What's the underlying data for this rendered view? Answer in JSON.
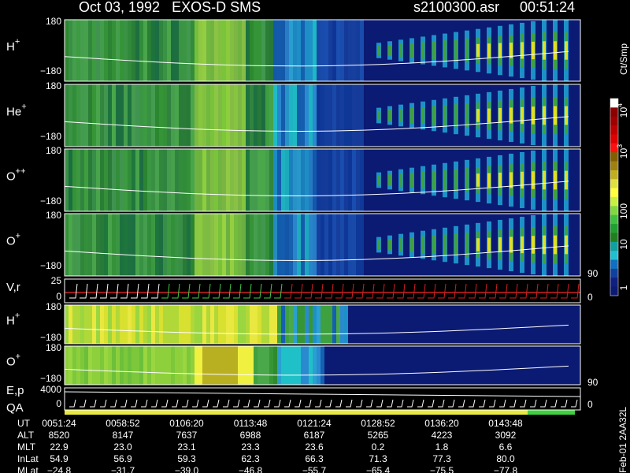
{
  "header": {
    "title": "Oct 03, 1992   EXOS-D SMS",
    "file": "s2100300.asr",
    "time": "00:51:24"
  },
  "panels": [
    {
      "label": "H",
      "charge": "+",
      "ticks": [
        "180",
        "−180"
      ]
    },
    {
      "label": "He",
      "charge": "+",
      "ticks": [
        "180",
        "−180"
      ]
    },
    {
      "label": "O",
      "charge": "++",
      "ticks": [
        "180",
        "−180"
      ]
    },
    {
      "label": "O",
      "charge": "+",
      "ticks": [
        "180",
        "−180"
      ]
    },
    {
      "label": "V,r",
      "ticks": [
        "25",
        "0"
      ],
      "right_ticks": [
        "90",
        "0"
      ]
    },
    {
      "label": "H",
      "charge": "+",
      "ticks": [
        "180",
        "−180"
      ]
    },
    {
      "label": "O",
      "charge": "+",
      "ticks": [
        "180",
        "−180"
      ]
    },
    {
      "label": "E,p",
      "label2": "QA",
      "ticks": [
        "4000",
        "0"
      ],
      "right_ticks": [
        "90",
        "0"
      ]
    }
  ],
  "colorbar": {
    "units": "Ct/Smp",
    "labels": [
      {
        "base": "10",
        "exp": "4"
      },
      {
        "base": "10",
        "exp": "3"
      },
      {
        "base": "100"
      },
      {
        "base": "10"
      },
      {
        "base": "1"
      }
    ]
  },
  "table": {
    "rows": [
      {
        "label": "UT",
        "values": [
          "0051:24",
          "0058:52",
          "0106:20",
          "0113:48",
          "0121:24",
          "0128:52",
          "0136:20",
          "0143:48"
        ]
      },
      {
        "label": "ALT",
        "values": [
          "8520",
          "8147",
          "7637",
          "6988",
          "6187",
          "5265",
          "4223",
          "3092"
        ]
      },
      {
        "label": "MLT",
        "values": [
          "22.9",
          "23.0",
          "23.1",
          "23.3",
          "23.6",
          "0.2",
          "1.8",
          "6.6"
        ]
      },
      {
        "label": "InLat",
        "values": [
          "54.9",
          "56.9",
          "59.3",
          "62.3",
          "66.3",
          "71.3",
          "77.3",
          "80.0"
        ]
      },
      {
        "label": "MLat",
        "values": [
          "−24.8",
          "−31.7",
          "−39.0",
          "−46.8",
          "−55.7",
          "−65.4",
          "−75.5",
          "−77.8"
        ]
      }
    ]
  },
  "footer": "Feb-01 2AA32L"
}
